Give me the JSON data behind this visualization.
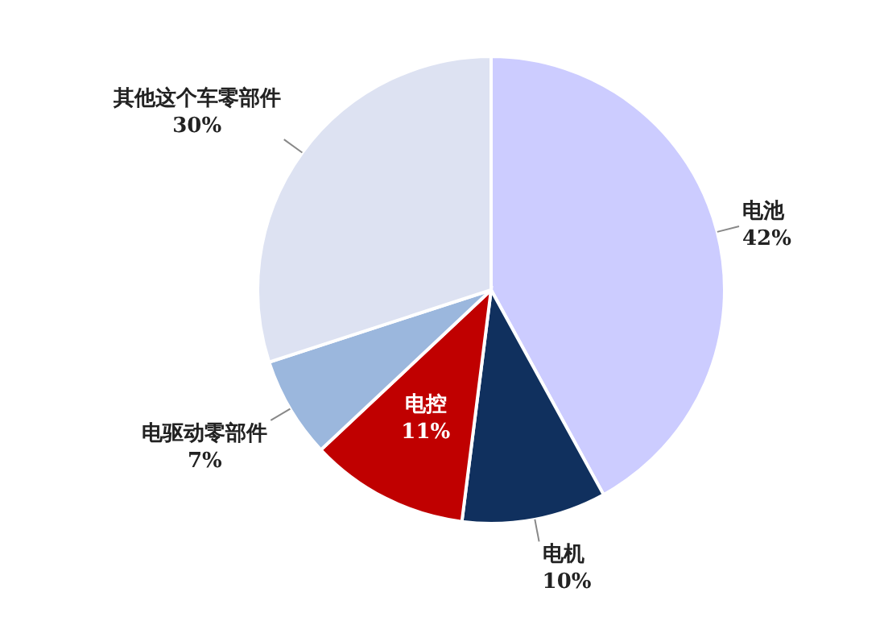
{
  "chart_data": {
    "type": "pie",
    "categories": [
      "电池",
      "电机",
      "电控",
      "电驱动零部件",
      "其他这个车零部件"
    ],
    "values": [
      42,
      10,
      11,
      7,
      30
    ],
    "colors": [
      "#ccccff",
      "#10305e",
      "#c00000",
      "#9bb7dd",
      "#dde2f2"
    ],
    "value_labels": [
      "42%",
      "10%",
      "11%",
      "7%",
      "30%"
    ]
  }
}
